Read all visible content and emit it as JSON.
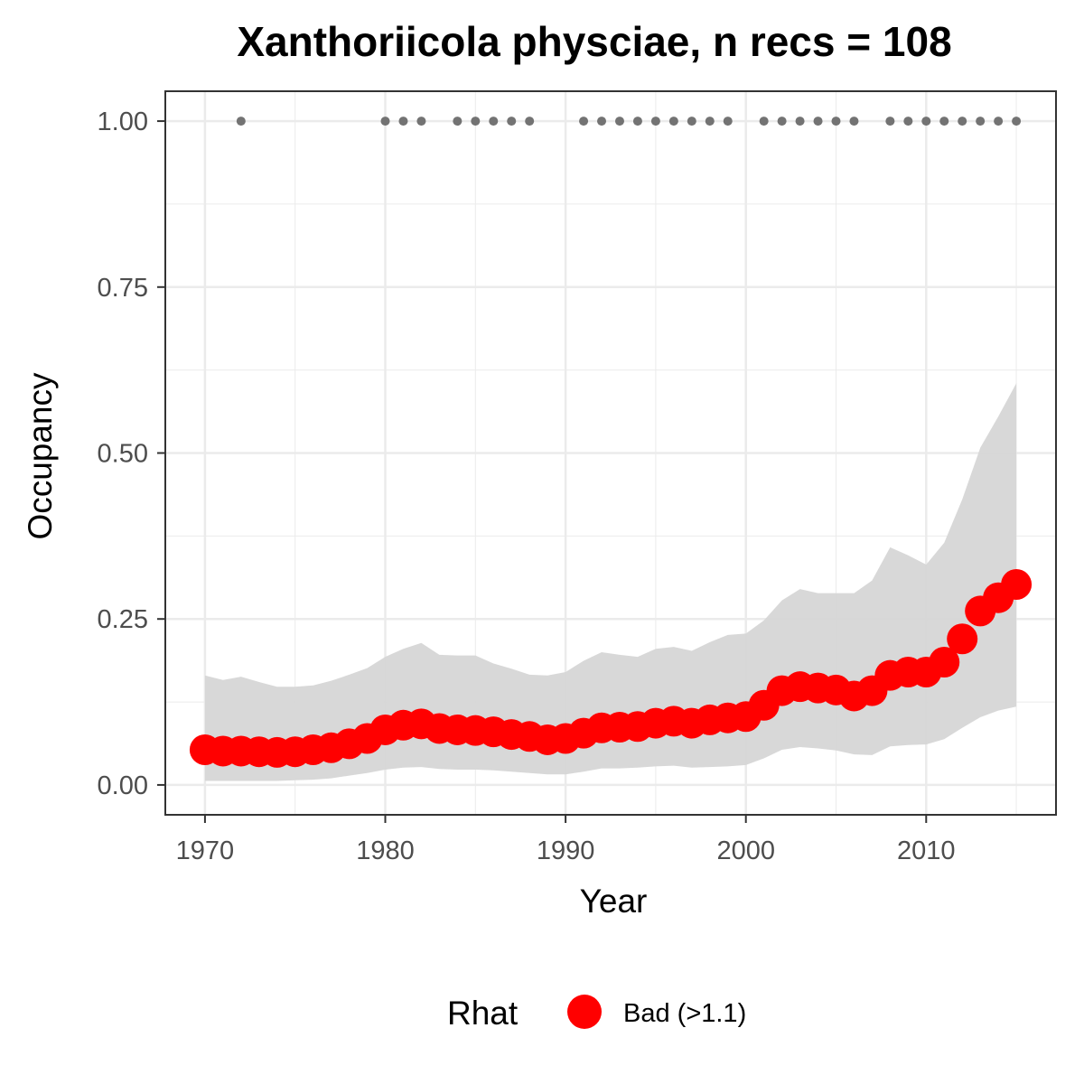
{
  "chart_data": {
    "type": "line",
    "title": "Xanthoriicola physciae, n recs = 108",
    "xlabel": "Year",
    "ylabel": "Occupancy",
    "xlim": [
      1967.8,
      2017.2
    ],
    "ylim": [
      -0.045,
      1.045
    ],
    "x_ticks": [
      1970,
      1980,
      1990,
      2000,
      2010
    ],
    "x_tick_labels": [
      "1970",
      "1980",
      "1990",
      "2000",
      "2010"
    ],
    "y_ticks": [
      0,
      0.25,
      0.5,
      0.75,
      1
    ],
    "y_tick_labels": [
      "0.00",
      "0.25",
      "0.50",
      "0.75",
      "1.00"
    ],
    "grid": true,
    "legend": {
      "title": "Rhat",
      "position": "bottom",
      "entries": [
        {
          "label": "Bad (>1.1)",
          "color": "#ff0000"
        }
      ]
    },
    "colors": {
      "points": "#ff0000",
      "ribbon": "#d6d6d6",
      "records": "#737373",
      "grid": "#ebebeb",
      "panel_border": "#333333"
    },
    "series": [
      {
        "name": "Bad (>1.1)",
        "x": [
          1970,
          1971,
          1972,
          1973,
          1974,
          1975,
          1976,
          1977,
          1978,
          1979,
          1980,
          1981,
          1982,
          1983,
          1984,
          1985,
          1986,
          1987,
          1988,
          1989,
          1990,
          1991,
          1992,
          1993,
          1994,
          1995,
          1996,
          1997,
          1998,
          1999,
          2000,
          2001,
          2002,
          2003,
          2004,
          2005,
          2006,
          2007,
          2008,
          2009,
          2010,
          2011,
          2012,
          2013,
          2014,
          2015
        ],
        "y": [
          0.053,
          0.051,
          0.051,
          0.05,
          0.049,
          0.05,
          0.053,
          0.056,
          0.062,
          0.07,
          0.083,
          0.09,
          0.092,
          0.085,
          0.083,
          0.082,
          0.08,
          0.076,
          0.073,
          0.068,
          0.07,
          0.078,
          0.086,
          0.087,
          0.088,
          0.093,
          0.096,
          0.093,
          0.098,
          0.101,
          0.103,
          0.12,
          0.142,
          0.148,
          0.146,
          0.143,
          0.134,
          0.142,
          0.165,
          0.17,
          0.17,
          0.185,
          0.22,
          0.262,
          0.282,
          0.302
        ],
        "lower": [
          0.006,
          0.006,
          0.006,
          0.006,
          0.006,
          0.007,
          0.008,
          0.01,
          0.014,
          0.018,
          0.023,
          0.026,
          0.027,
          0.024,
          0.023,
          0.023,
          0.022,
          0.02,
          0.018,
          0.016,
          0.016,
          0.02,
          0.025,
          0.025,
          0.026,
          0.028,
          0.029,
          0.026,
          0.027,
          0.028,
          0.03,
          0.04,
          0.053,
          0.057,
          0.055,
          0.052,
          0.046,
          0.045,
          0.058,
          0.06,
          0.061,
          0.069,
          0.086,
          0.102,
          0.112,
          0.118
        ],
        "upper": [
          0.165,
          0.158,
          0.163,
          0.155,
          0.148,
          0.148,
          0.15,
          0.157,
          0.166,
          0.176,
          0.193,
          0.205,
          0.214,
          0.196,
          0.195,
          0.195,
          0.183,
          0.175,
          0.166,
          0.165,
          0.17,
          0.187,
          0.2,
          0.196,
          0.193,
          0.205,
          0.208,
          0.202,
          0.215,
          0.226,
          0.228,
          0.248,
          0.278,
          0.295,
          0.289,
          0.289,
          0.289,
          0.308,
          0.358,
          0.346,
          0.332,
          0.365,
          0.43,
          0.508,
          0.555,
          0.605
        ]
      },
      {
        "name": "records",
        "x": [
          1972,
          1980,
          1981,
          1982,
          1984,
          1985,
          1986,
          1987,
          1988,
          1991,
          1992,
          1993,
          1994,
          1995,
          1996,
          1997,
          1998,
          1999,
          2001,
          2002,
          2003,
          2004,
          2005,
          2006,
          2008,
          2009,
          2010,
          2011,
          2012,
          2013,
          2014,
          2015
        ],
        "y": [
          1,
          1,
          1,
          1,
          1,
          1,
          1,
          1,
          1,
          1,
          1,
          1,
          1,
          1,
          1,
          1,
          1,
          1,
          1,
          1,
          1,
          1,
          1,
          1,
          1,
          1,
          1,
          1,
          1,
          1,
          1,
          1
        ]
      }
    ]
  }
}
